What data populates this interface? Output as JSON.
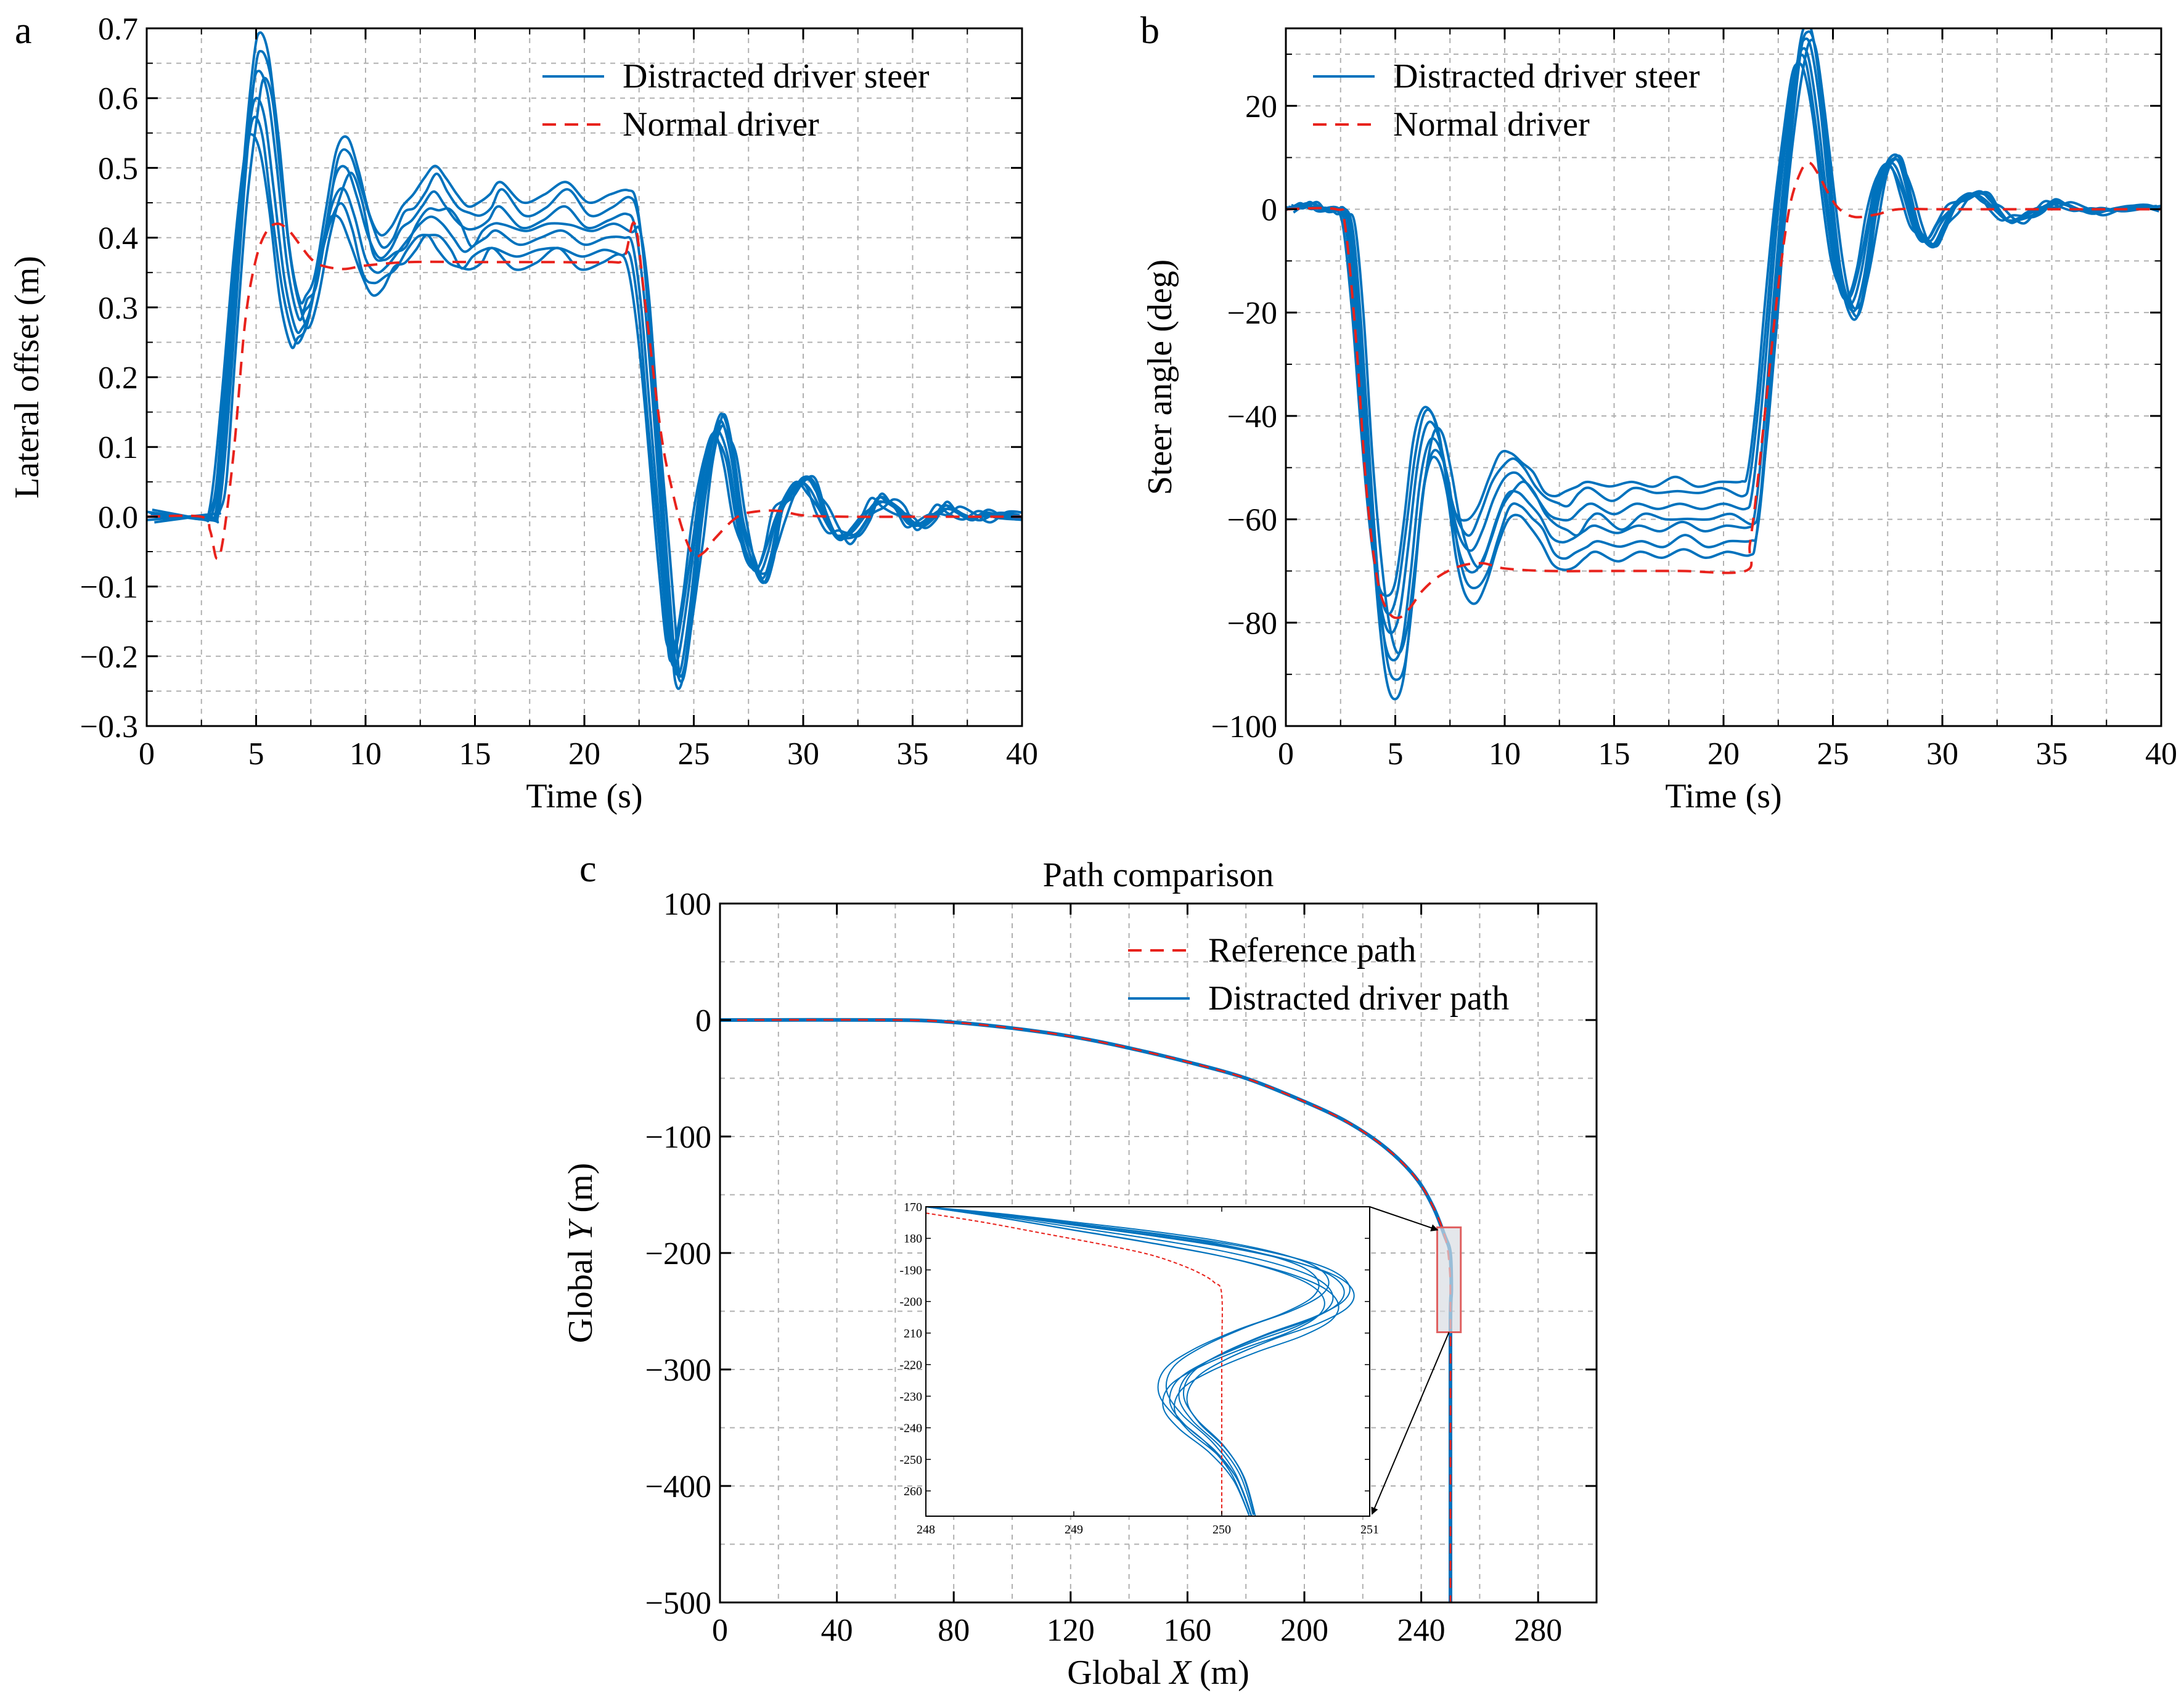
{
  "colors": {
    "distracted": "#0072bd",
    "normal": "#e8221c",
    "box_fill": "#d9dde3",
    "box_edge": "#e06060"
  },
  "chart_data": [
    {
      "id": "a",
      "type": "line",
      "panel_letter": "a",
      "title": "",
      "xlabel": "Time (s)",
      "ylabel": "Lateral offset (m)",
      "xlim": [
        0,
        40
      ],
      "ylim": [
        -0.3,
        0.7
      ],
      "xticks": [
        0,
        5,
        10,
        15,
        20,
        25,
        30,
        35,
        40
      ],
      "yticks": [
        -0.3,
        -0.2,
        -0.1,
        0.0,
        0.1,
        0.2,
        0.3,
        0.4,
        0.5,
        0.6,
        0.7
      ],
      "ytick_labels": [
        "−0.3",
        "−0.2",
        "−0.1",
        "0.0",
        "0.1",
        "0.2",
        "0.3",
        "0.4",
        "0.5",
        "0.6",
        "0.7"
      ],
      "grid": true,
      "legend": {
        "position": "top-right",
        "entries": [
          "Distracted driver steer",
          "Normal driver"
        ]
      },
      "series": [
        {
          "name": "Normal driver",
          "style": "dashed",
          "color": "#e8221c",
          "x": [
            0,
            2.5,
            2.9,
            3.2,
            3.5,
            4.0,
            4.5,
            5.0,
            5.5,
            6.0,
            6.5,
            7.0,
            7.5,
            8.0,
            9.0,
            10.0,
            12.0,
            15.0,
            18.0,
            21.0,
            21.8,
            22.3,
            22.8,
            23.5,
            24.0,
            24.5,
            25.0,
            25.5,
            26.0,
            27.0,
            28.0,
            29.0,
            30.0,
            32.0,
            35.0,
            38.0,
            40.0
          ],
          "y": [
            0,
            0,
            -0.02,
            -0.06,
            -0.03,
            0.1,
            0.28,
            0.37,
            0.41,
            0.42,
            0.41,
            0.39,
            0.37,
            0.36,
            0.355,
            0.36,
            0.365,
            0.365,
            0.365,
            0.365,
            0.37,
            0.42,
            0.3,
            0.12,
            0.04,
            -0.02,
            -0.055,
            -0.05,
            -0.03,
            0.0,
            0.008,
            0.008,
            0.002,
            0,
            0,
            0,
            0
          ]
        },
        {
          "name": "Distracted driver steer",
          "style": "solid",
          "color": "#0072bd",
          "x": [
            0,
            2.7,
            3.0,
            3.3,
            3.7,
            4.2,
            4.7,
            5.0,
            5.4,
            5.8,
            6.3,
            6.8,
            7.1,
            7.5,
            8.0,
            8.5,
            9.0,
            9.5,
            10.0,
            10.5,
            11.0,
            11.5,
            12.0,
            12.5,
            13.0,
            13.5,
            14.0,
            14.5,
            15.0,
            15.5,
            16.0,
            17.0,
            18.0,
            19.0,
            20.0,
            21.0,
            21.8,
            22.2,
            22.6,
            23.0,
            23.4,
            23.8,
            24.0,
            24.3,
            24.7,
            25.1,
            25.5,
            25.9,
            26.2,
            26.6,
            27.0,
            27.5,
            28.0,
            28.4,
            28.8,
            29.3,
            29.8,
            30.3,
            30.8,
            31.3,
            31.8,
            32.3,
            32.8,
            33.3,
            33.8,
            34.3,
            34.8,
            35.3,
            35.8,
            36.3,
            36.8,
            37.5,
            38.2,
            39.0,
            40.0
          ],
          "y": [
            0,
            0,
            0.005,
            0.06,
            0.22,
            0.42,
            0.56,
            0.6,
            0.57,
            0.47,
            0.34,
            0.27,
            0.27,
            0.3,
            0.38,
            0.45,
            0.47,
            0.43,
            0.37,
            0.35,
            0.36,
            0.38,
            0.4,
            0.42,
            0.43,
            0.42,
            0.4,
            0.38,
            0.39,
            0.4,
            0.41,
            0.39,
            0.4,
            0.41,
            0.39,
            0.4,
            0.4,
            0.39,
            0.3,
            0.15,
            0.0,
            -0.15,
            -0.21,
            -0.2,
            -0.12,
            -0.02,
            0.07,
            0.12,
            0.12,
            0.08,
            0.0,
            -0.06,
            -0.08,
            -0.05,
            0.0,
            0.03,
            0.05,
            0.04,
            0.01,
            -0.02,
            -0.03,
            -0.02,
            0.0,
            0.02,
            0.02,
            0.01,
            -0.01,
            -0.01,
            0.0,
            0.01,
            0.01,
            0.0,
            0.0,
            0.003,
            0.0
          ]
        }
      ]
    },
    {
      "id": "b",
      "type": "line",
      "panel_letter": "b",
      "title": "",
      "xlabel": "Time (s)",
      "ylabel": "Steer angle (deg)",
      "xlim": [
        0,
        40
      ],
      "ylim": [
        -100,
        35
      ],
      "xticks": [
        0,
        5,
        10,
        15,
        20,
        25,
        30,
        35,
        40
      ],
      "yticks": [
        -100,
        -80,
        -60,
        -40,
        -20,
        0,
        20
      ],
      "ytick_labels": [
        "−100",
        "−80",
        "−60",
        "−40",
        "−20",
        "0",
        "20"
      ],
      "grid": true,
      "legend": {
        "position": "top-left",
        "entries": [
          "Distracted driver steer",
          "Normal driver"
        ]
      },
      "series": [
        {
          "name": "Normal driver",
          "style": "dashed",
          "color": "#e8221c",
          "x": [
            0,
            2.3,
            2.7,
            3.2,
            3.7,
            4.2,
            4.7,
            5.2,
            5.7,
            6.2,
            7.0,
            8.0,
            9.0,
            10.0,
            12.0,
            15.0,
            18.0,
            21.0,
            21.2,
            21.5,
            22.0,
            22.5,
            23.0,
            23.5,
            23.9,
            24.3,
            24.8,
            25.3,
            26.0,
            27.0,
            28.0,
            30.0,
            35.0,
            40.0
          ],
          "y": [
            0,
            0,
            -3,
            -25,
            -55,
            -72,
            -78,
            -79,
            -77,
            -74,
            -71,
            -69,
            -68.5,
            -69.5,
            -70,
            -70,
            -70,
            -70,
            -65,
            -55,
            -35,
            -15,
            0,
            7,
            9,
            7,
            3,
            0,
            -1.5,
            -1,
            0,
            0,
            0,
            0
          ]
        },
        {
          "name": "Distracted driver steer",
          "style": "solid",
          "color": "#0072bd",
          "x": [
            0,
            0.5,
            0.8,
            1.2,
            1.6,
            2.0,
            2.4,
            2.8,
            3.2,
            3.6,
            4.0,
            4.4,
            4.8,
            5.2,
            5.6,
            6.0,
            6.4,
            6.8,
            7.2,
            7.6,
            8.0,
            8.5,
            9.0,
            9.5,
            10.0,
            10.5,
            11.0,
            11.5,
            12.0,
            12.5,
            13.0,
            13.5,
            14.0,
            15.0,
            16.0,
            17.0,
            18.0,
            19.0,
            20.0,
            21.0,
            21.3,
            21.7,
            22.1,
            22.5,
            22.9,
            23.3,
            23.6,
            23.9,
            24.3,
            24.7,
            25.1,
            25.5,
            25.9,
            26.3,
            26.7,
            27.1,
            27.5,
            27.9,
            28.3,
            28.7,
            29.1,
            29.5,
            29.9,
            30.4,
            30.9,
            31.4,
            31.9,
            32.4,
            32.9,
            33.4,
            33.9,
            34.4,
            34.9,
            35.5,
            36.2,
            37.0,
            38.0,
            39.0,
            40.0
          ],
          "y": [
            0,
            0.5,
            1,
            0.5,
            0,
            0,
            -0.5,
            -3,
            -20,
            -45,
            -65,
            -78,
            -82,
            -78,
            -65,
            -50,
            -42,
            -42,
            -48,
            -58,
            -64,
            -66,
            -62,
            -56,
            -52,
            -51,
            -53,
            -56,
            -59,
            -60,
            -60,
            -58,
            -57,
            -59,
            -57,
            -58,
            -57,
            -58,
            -57,
            -58,
            -55,
            -40,
            -20,
            0,
            15,
            27,
            31,
            29,
            18,
            3,
            -10,
            -17,
            -18,
            -12,
            -2,
            6,
            9,
            8,
            3,
            -3,
            -6,
            -6,
            -3,
            0,
            2,
            3,
            2,
            0,
            -2,
            -2,
            -1,
            0,
            1,
            1,
            0,
            -0.5,
            0,
            0.5,
            0
          ]
        }
      ]
    },
    {
      "id": "c",
      "type": "line",
      "panel_letter": "c",
      "title": "Path comparison",
      "xlabel": "Global X (m)",
      "xlabel_plain": "Global ",
      "xlabel_var": "X",
      "xlabel_unit": " (m)",
      "ylabel": "Global Y (m)",
      "ylabel_plain": "Global ",
      "ylabel_var": "Y",
      "ylabel_unit": " (m)",
      "xlim": [
        0,
        300
      ],
      "ylim": [
        -500,
        100
      ],
      "xticks": [
        0,
        40,
        80,
        120,
        160,
        200,
        240,
        280
      ],
      "yticks": [
        -500,
        -400,
        -300,
        -200,
        -100,
        0,
        100
      ],
      "ytick_labels": [
        "−500",
        "−400",
        "−300",
        "−200",
        "−100",
        "0",
        "100"
      ],
      "grid": true,
      "legend": {
        "position": "top-right",
        "entries": [
          "Reference path",
          "Distracted driver path"
        ]
      },
      "series": [
        {
          "name": "Reference path",
          "style": "dashed",
          "color": "#e8221c",
          "x": [
            0,
            60,
            80,
            100,
            120,
            140,
            160,
            180,
            200,
            215,
            228,
            238,
            244,
            248,
            249.6,
            250,
            250,
            250
          ],
          "y": [
            0,
            0,
            -2,
            -7,
            -14,
            -24,
            -36,
            -50,
            -70,
            -88,
            -110,
            -135,
            -160,
            -185,
            -210,
            -250,
            -400,
            -500
          ]
        },
        {
          "name": "Distracted driver path",
          "style": "solid",
          "color": "#0072bd",
          "x": [
            0,
            60,
            80,
            100,
            120,
            140,
            160,
            180,
            200,
            215,
            228,
            238,
            244,
            248,
            249.9,
            250.3,
            250.0,
            250,
            250
          ],
          "y": [
            0,
            0,
            -2,
            -7,
            -14,
            -24,
            -36,
            -50,
            -70,
            -88,
            -110,
            -135,
            -160,
            -185,
            -200,
            -230,
            -260,
            -400,
            -500
          ]
        }
      ],
      "zoom_box": {
        "xlim": [
          248,
          251
        ],
        "ylim": [
          -268,
          -178
        ]
      },
      "inset": {
        "xlim": [
          248,
          251
        ],
        "ylim": [
          -268,
          -170
        ],
        "xticks": [
          248,
          249,
          250,
          251
        ],
        "yticks": [
          170,
          180,
          190,
          200,
          210,
          220,
          230,
          240,
          250,
          260
        ],
        "ytick_labels": [
          "170",
          "180",
          "-190",
          "-200",
          "210",
          "-220",
          "-230",
          "-240",
          "-250",
          "260"
        ],
        "series": [
          {
            "name": "Reference path",
            "style": "dashed",
            "color": "#e8221c",
            "x": [
              248.0,
              248.4,
              248.8,
              249.2,
              249.5,
              249.7,
              249.85,
              249.95,
              250.0,
              250.0,
              250.0
            ],
            "y": [
              -172,
              -175,
              -178.5,
              -182,
              -185,
              -188,
              -191,
              -194,
              -198,
              -220,
              -268
            ]
          },
          {
            "name": "Distracted driver path",
            "style": "solid",
            "color": "#0072bd",
            "x": [
              248.0,
              248.5,
              249.0,
              249.5,
              250.0,
              250.4,
              250.65,
              250.75,
              250.7,
              250.5,
              250.2,
              249.9,
              249.7,
              249.65,
              249.75,
              249.95,
              250.1,
              250.2
            ],
            "y": [
              -170,
              -173,
              -176.5,
              -180,
              -184,
              -188.5,
              -193,
              -198,
              -203,
              -208,
              -213,
              -219,
              -225,
              -232,
              -239,
              -247,
              -256,
              -268
            ]
          }
        ]
      }
    }
  ]
}
